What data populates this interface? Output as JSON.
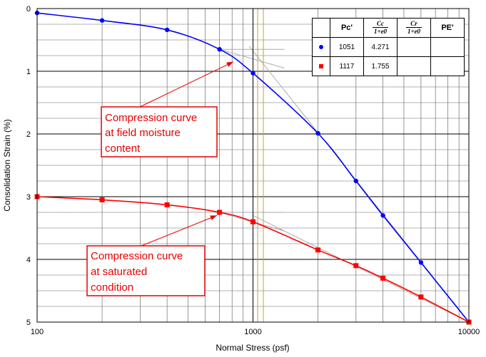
{
  "chart_data": {
    "type": "line",
    "xscale": "log",
    "xlim": [
      100,
      10000
    ],
    "ylim": [
      0,
      5
    ],
    "y_inverted": true,
    "grid": true,
    "xlabel": "Normal Stress (psf)",
    "ylabel": "Consolidation Strain (%)",
    "xtick_labels": [
      "100",
      "1000",
      "10000"
    ],
    "ytick_labels": [
      "0",
      "1",
      "2",
      "3",
      "4",
      "5"
    ],
    "series": [
      {
        "name": "field moisture content",
        "color": "#0000ff",
        "marker": "circle",
        "x": [
          100,
          200,
          400,
          700,
          1000,
          2000,
          3000,
          4000,
          6000,
          10000
        ],
        "y": [
          0.07,
          0.19,
          0.34,
          0.65,
          1.03,
          1.99,
          2.75,
          3.3,
          4.05,
          5.0
        ]
      },
      {
        "name": "saturated condition",
        "color": "#ff0000",
        "marker": "square",
        "x": [
          100,
          200,
          400,
          700,
          1000,
          2000,
          3000,
          4000,
          6000,
          10000
        ],
        "y": [
          3.0,
          3.05,
          3.13,
          3.25,
          3.4,
          3.85,
          4.1,
          4.3,
          4.6,
          5.0
        ]
      }
    ],
    "construction_lines": [
      {
        "color": "#aaaaaa",
        "x": [
          700,
          1400
        ],
        "y": [
          0.65,
          0.65
        ]
      },
      {
        "color": "#aaaaaa",
        "x": [
          700,
          1400
        ],
        "y": [
          0.65,
          0.95
        ]
      },
      {
        "color": "#aaaaaa",
        "x": [
          960,
          10000
        ],
        "y": [
          0.6,
          5.0
        ]
      },
      {
        "color": "#aaaaaa",
        "x": [
          700,
          1400
        ],
        "y": [
          3.25,
          3.25
        ]
      },
      {
        "color": "#aaaaaa",
        "x": [
          700,
          1400
        ],
        "y": [
          3.25,
          3.55
        ]
      },
      {
        "color": "#aaaaaa",
        "x": [
          1000,
          10000
        ],
        "y": [
          3.3,
          5.0
        ]
      },
      {
        "color": "#000000",
        "x": [
          1000,
          1000
        ],
        "y": [
          0,
          5
        ]
      },
      {
        "color": "#c8a040",
        "x": [
          1051,
          1051
        ],
        "y": [
          0,
          5
        ]
      },
      {
        "color": "#c8a040",
        "x": [
          1117,
          1117
        ],
        "y": [
          0,
          5
        ]
      }
    ],
    "annotations": [
      {
        "lines": [
          "Compression curve",
          "at field moisture",
          "content"
        ],
        "arrow_to": {
          "x": 810,
          "y": 0.85
        }
      },
      {
        "lines": [
          "Compression curve",
          "at saturated",
          "condition"
        ],
        "arrow_to": {
          "x": 680,
          "y": 3.3
        }
      }
    ]
  },
  "table": {
    "headers": {
      "pc": "Pc'",
      "cc_num": "Cc",
      "cc_den": "1+e0",
      "cr_num": "Cr",
      "cr_den": "1+e0",
      "pe": "PE'"
    },
    "rows": [
      {
        "marker": "circle",
        "pc": "1051",
        "cc": "4.271",
        "cr": "",
        "pe": ""
      },
      {
        "marker": "square",
        "pc": "1117",
        "cc": "1.755",
        "cr": "",
        "pe": ""
      }
    ]
  }
}
